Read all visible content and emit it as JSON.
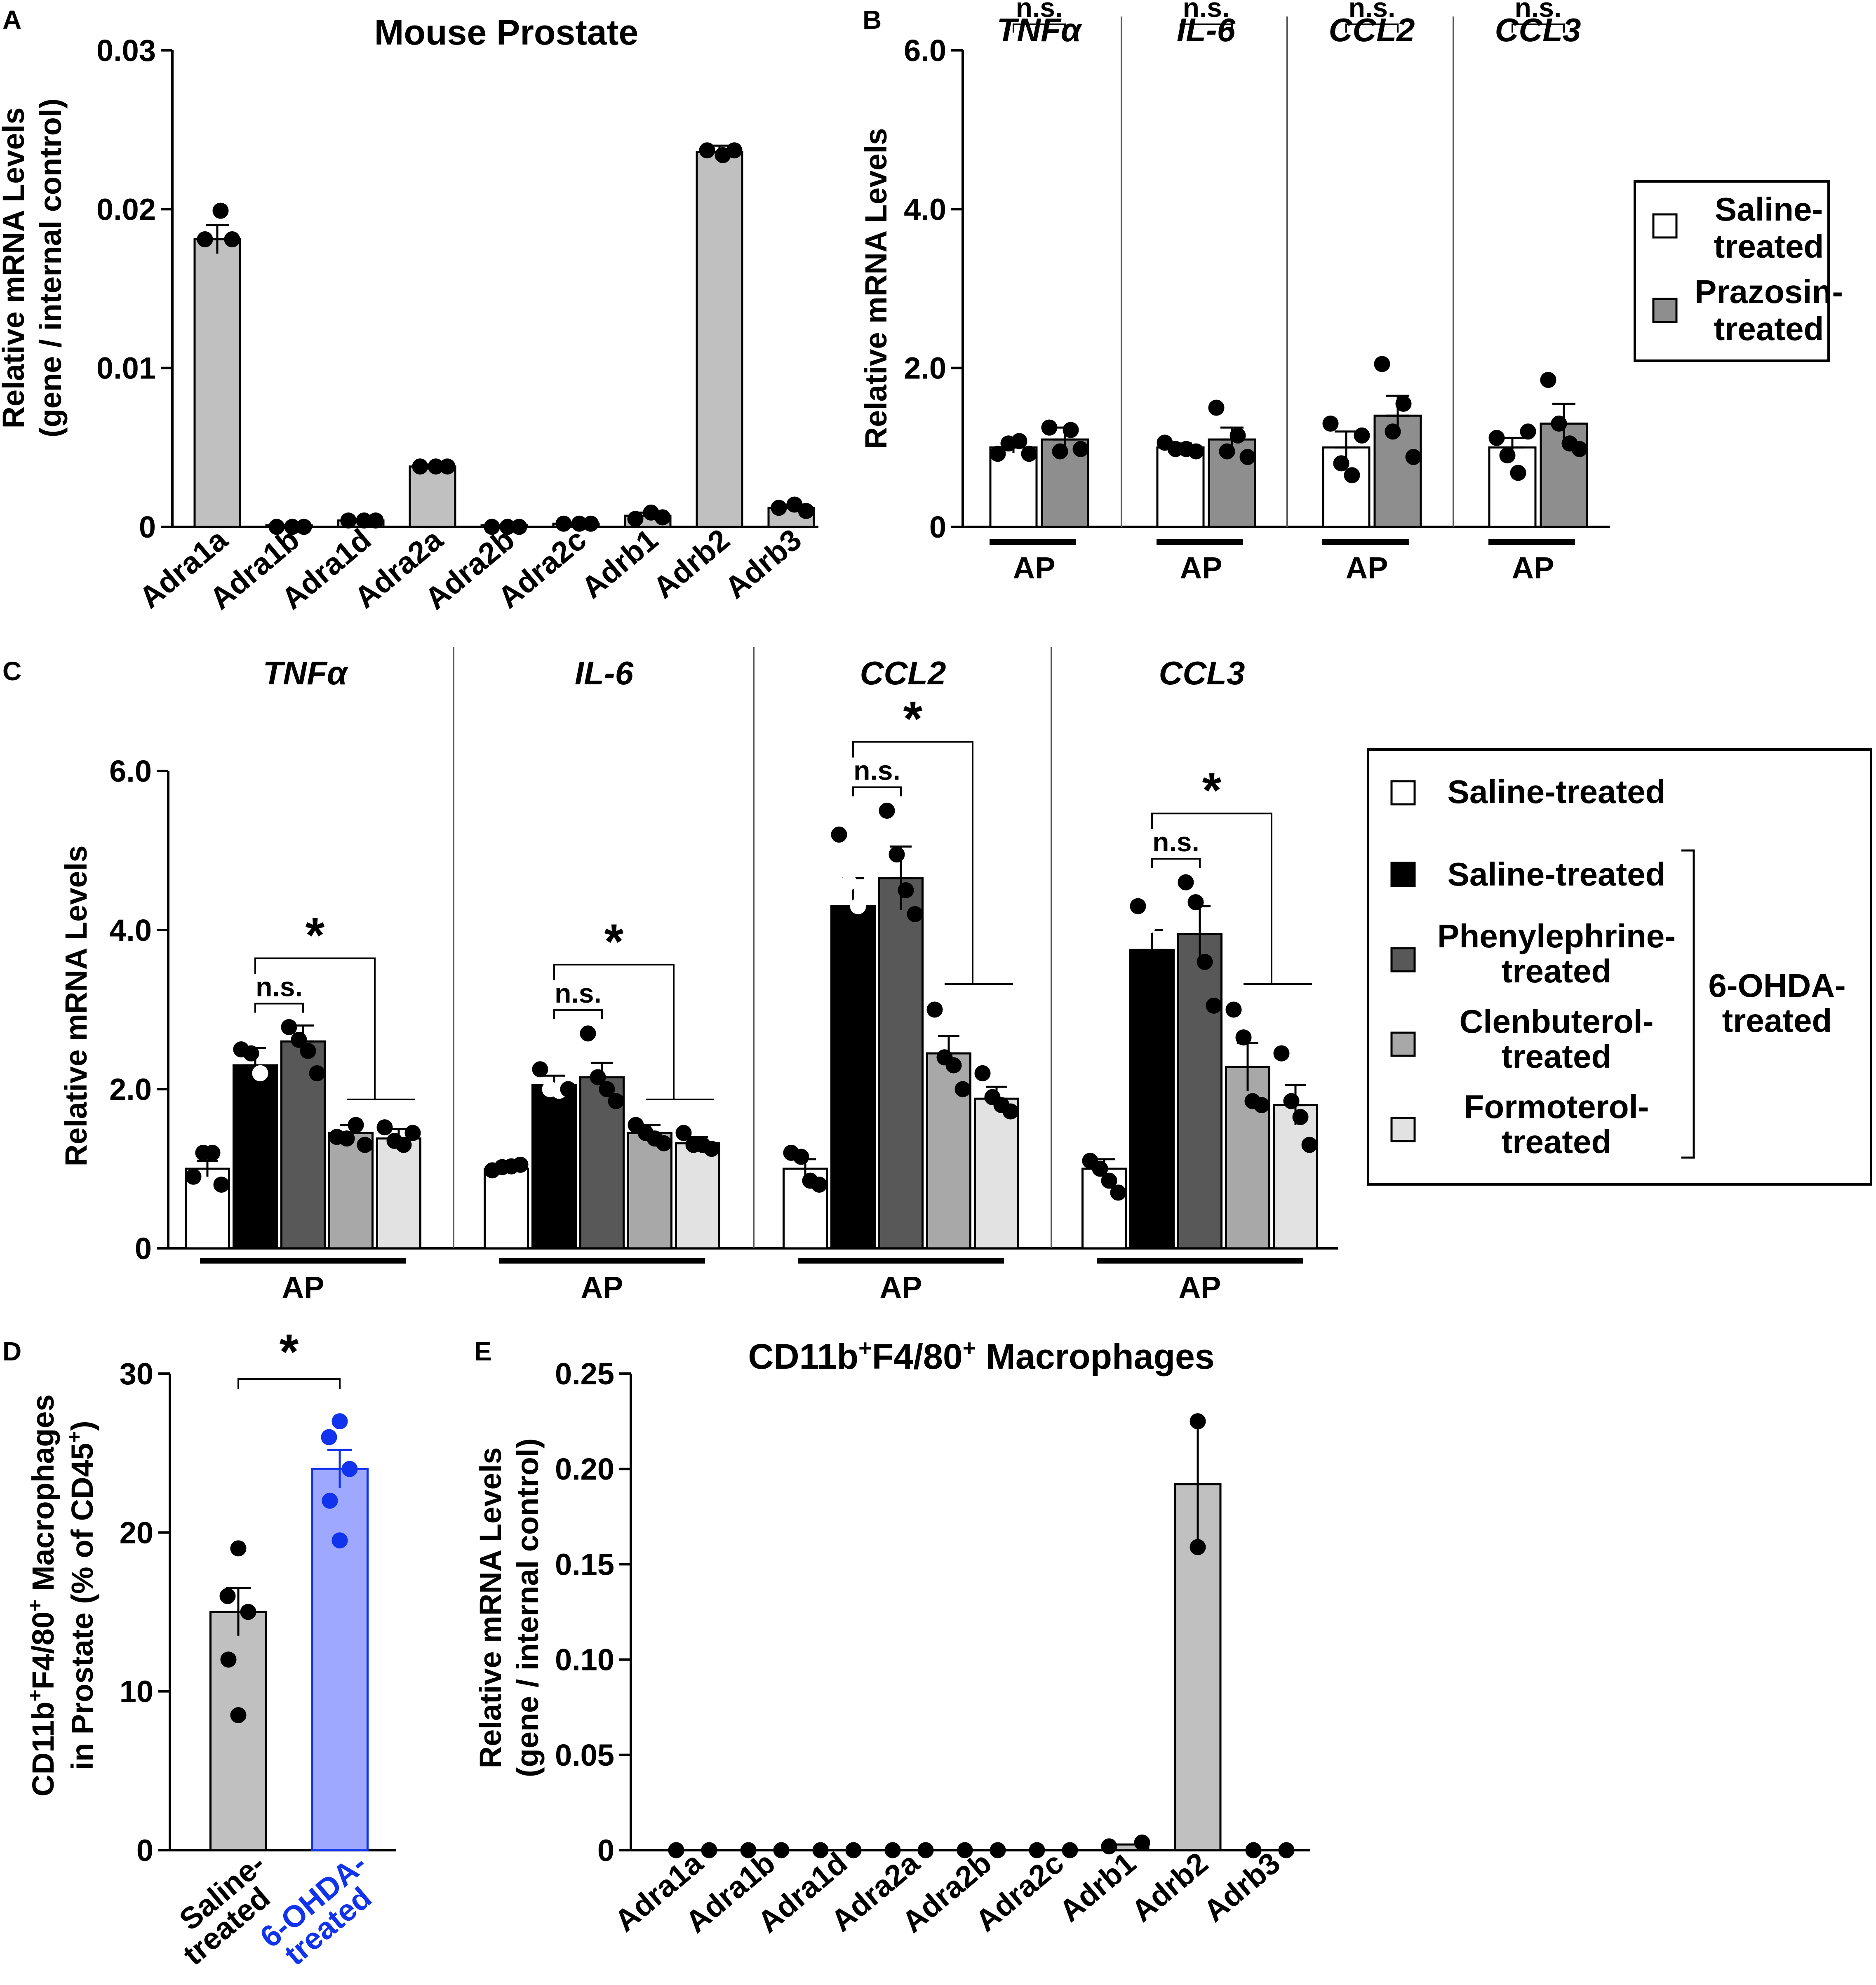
{
  "colors": {
    "grey_bar": "#c0c0c0",
    "prazosin": "#8e8e8e",
    "saline": "#ffffff",
    "ohda_saline": "#000000",
    "phenylephrine": "#585858",
    "clenbuterol": "#a8a8a8",
    "formoterol": "#e2e2e2",
    "ohda_blue": "#9fa8ff",
    "ohda_blue_edge": "#1133ee",
    "ohda_label": "#1133ee"
  },
  "chart_data": [
    {
      "panel": "A",
      "type": "bar",
      "title": "Mouse Prostate",
      "ylabel": [
        "Relative mRNA Levels",
        "(gene / internal control)"
      ],
      "ylim": [
        0,
        0.03
      ],
      "yticks": [
        "0",
        "0.01",
        "0.02",
        "0.03"
      ],
      "categories": [
        "Adra1a",
        "Adra1b",
        "Adra1d",
        "Adra2a",
        "Adra2b",
        "Adra2c",
        "Adrb1",
        "Adrb2",
        "Adrb3"
      ],
      "values": [
        0.0181,
        0.0001,
        0.0004,
        0.0038,
        0.0001,
        0.0002,
        0.0007,
        0.0236,
        0.0012
      ],
      "errors": [
        0.0009,
        0,
        0.0001,
        0.0001,
        0,
        0,
        0.0002,
        0.0004,
        0.0002
      ],
      "points": [
        [
          0.0181,
          0.0199,
          0.0181
        ],
        [
          0,
          0,
          0
        ],
        [
          0.0004,
          0.0004,
          0.0004
        ],
        [
          0.0038,
          0.0038,
          0.0038
        ],
        [
          0,
          0,
          0
        ],
        [
          0.0002,
          0.0002,
          0.0002
        ],
        [
          0.0005,
          0.0009,
          0.0006
        ],
        [
          0.0237,
          0.0234,
          0.0237
        ],
        [
          0.0012,
          0.0014,
          0.001
        ]
      ]
    },
    {
      "panel": "B",
      "type": "bar",
      "ylabel": "Relative mRNA Levels",
      "ylim": [
        0,
        6.0
      ],
      "yticks": [
        "0",
        "2.0",
        "4.0",
        "6.0"
      ],
      "genes": [
        "TNFα",
        "IL-6",
        "CCL2",
        "CCL3"
      ],
      "group_label": "AP",
      "series": [
        "Saline-treated",
        "Prazosin-treated"
      ],
      "values": [
        [
          1.0,
          1.1
        ],
        [
          1.0,
          1.1
        ],
        [
          1.0,
          1.4
        ],
        [
          1.0,
          1.3
        ]
      ],
      "errors": [
        [
          0.07,
          0.15
        ],
        [
          0.05,
          0.15
        ],
        [
          0.2,
          0.25
        ],
        [
          0.12,
          0.25
        ]
      ],
      "points": [
        [
          [
            0.92,
            1.05,
            1.08,
            0.92
          ],
          [
            1.25,
            0.95,
            1.22,
            0.98
          ]
        ],
        [
          [
            1.06,
            0.98,
            0.98,
            0.95
          ],
          [
            1.5,
            0.95,
            1.15,
            0.88
          ]
        ],
        [
          [
            1.3,
            0.8,
            0.65,
            1.15
          ],
          [
            2.05,
            1.2,
            1.55,
            0.88
          ]
        ],
        [
          [
            1.12,
            0.9,
            0.68,
            1.2
          ],
          [
            1.85,
            1.3,
            1.05,
            0.98
          ]
        ]
      ],
      "significance": "n.s."
    },
    {
      "panel": "C",
      "type": "bar",
      "ylabel": "Relative mRNA Levels",
      "ylim": [
        0,
        6.0
      ],
      "yticks": [
        "0",
        "2.0",
        "4.0",
        "6.0"
      ],
      "genes": [
        "TNFα",
        "IL-6",
        "CCL2",
        "CCL3"
      ],
      "group_label": "AP",
      "series": [
        "Saline-treated",
        "Saline-treated (6-OHDA)",
        "Phenylephrine-treated",
        "Clenbuterol-treated",
        "Formoterol-treated"
      ],
      "values": [
        [
          1.0,
          2.3,
          2.6,
          1.45,
          1.38
        ],
        [
          1.0,
          2.05,
          2.15,
          1.45,
          1.32
        ],
        [
          1.0,
          4.3,
          4.65,
          2.45,
          1.88
        ],
        [
          1.0,
          3.75,
          3.95,
          2.28,
          1.8
        ]
      ],
      "errors": [
        [
          0.1,
          0.22,
          0.2,
          0.1,
          0.12
        ],
        [
          0.05,
          0.12,
          0.18,
          0.1,
          0.08
        ],
        [
          0.12,
          0.35,
          0.4,
          0.22,
          0.15
        ],
        [
          0.12,
          0.25,
          0.35,
          0.3,
          0.25
        ]
      ],
      "points": [
        [
          [
            0.9,
            1.2,
            1.2,
            0.8
          ],
          [
            2.5,
            2.45,
            2.2,
            1.8
          ],
          [
            2.78,
            2.62,
            2.48,
            2.2
          ],
          [
            1.4,
            1.38,
            1.55,
            1.3
          ],
          [
            1.52,
            1.35,
            1.3,
            1.45
          ]
        ],
        [
          [
            0.98,
            1.02,
            1.03,
            1.05
          ],
          [
            2.25,
            2.0,
            1.98,
            2.0
          ],
          [
            2.7,
            2.15,
            2.0,
            1.85
          ],
          [
            1.55,
            1.45,
            1.38,
            1.32
          ],
          [
            1.45,
            1.3,
            1.3,
            1.25
          ]
        ],
        [
          [
            1.2,
            1.15,
            0.85,
            0.8
          ],
          [
            5.2,
            4.6,
            4.3,
            3.9
          ],
          [
            5.5,
            4.95,
            4.5,
            4.2
          ],
          [
            3.0,
            2.4,
            2.3,
            2.0
          ],
          [
            2.2,
            1.9,
            1.8,
            1.72
          ]
        ],
        [
          [
            1.1,
            1.0,
            0.85,
            0.7
          ],
          [
            4.3,
            4.05,
            3.3,
            3.05
          ],
          [
            4.6,
            4.35,
            3.6,
            3.05
          ],
          [
            3.0,
            2.65,
            1.85,
            1.8
          ],
          [
            2.45,
            1.85,
            1.65,
            1.3
          ]
        ]
      ],
      "open_points": [
        [
          false,
          false,
          true,
          false
        ],
        [
          false,
          true,
          true,
          false
        ],
        [
          false,
          true,
          true,
          false
        ],
        [
          false,
          true,
          false,
          false
        ]
      ],
      "ns_label": "n.s.",
      "star_label": "*"
    },
    {
      "panel": "D",
      "type": "bar",
      "ylabel": [
        "CD11b⁺F4/80⁺ Macrophages",
        "in Prostate (% of CD45⁺)"
      ],
      "ylim": [
        0,
        30
      ],
      "yticks": [
        "0",
        "10",
        "20",
        "30"
      ],
      "categories": [
        "Saline-treated",
        "6-OHDA-treated"
      ],
      "category_lines": [
        [
          "Saline-",
          "treated"
        ],
        [
          "6-OHDA-",
          "treated"
        ]
      ],
      "values": [
        15.0,
        24.0
      ],
      "errors": [
        1.5,
        1.2
      ],
      "points": [
        [
          19.0,
          16.0,
          15.0,
          12.0,
          8.5
        ],
        [
          27.0,
          26.0,
          24.0,
          22.0,
          19.5
        ]
      ],
      "significance": "*"
    },
    {
      "panel": "E",
      "type": "bar",
      "title": "CD11b⁺F4/80⁺ Macrophages",
      "ylabel": [
        "Relative mRNA Levels",
        "(gene / internal control)"
      ],
      "ylim": [
        0,
        0.25
      ],
      "yticks": [
        "0",
        "0.05",
        "0.10",
        "0.15",
        "0.20",
        "0.25"
      ],
      "categories": [
        "Adra1a",
        "Adra1b",
        "Adra1d",
        "Adra2a",
        "Adra2b",
        "Adra2c",
        "Adrb1",
        "Adrb2",
        "Adrb3"
      ],
      "values": [
        0,
        0,
        0,
        0,
        0,
        0,
        0.003,
        0.192,
        0
      ],
      "errors": [
        0,
        0,
        0,
        0,
        0,
        0,
        0.001,
        0.033,
        0
      ],
      "points": [
        [
          0,
          0
        ],
        [
          0,
          0
        ],
        [
          0,
          0
        ],
        [
          0,
          0
        ],
        [
          0,
          0
        ],
        [
          0,
          0
        ],
        [
          0.002,
          0.004
        ],
        [
          0.225,
          0.159
        ],
        [
          0,
          0
        ]
      ]
    }
  ],
  "legend_b": {
    "items": [
      [
        "Saline-",
        "treated"
      ],
      [
        "Prazosin-",
        "treated"
      ]
    ]
  },
  "legend_c": {
    "items": [
      [
        "Saline-treated"
      ],
      [
        "Saline-treated"
      ],
      [
        "Phenylephrine-",
        "treated"
      ],
      [
        "Clenbuterol-",
        "treated"
      ],
      [
        "Formoterol-",
        "treated"
      ]
    ],
    "group_label": [
      "6-OHDA-",
      "treated"
    ]
  }
}
